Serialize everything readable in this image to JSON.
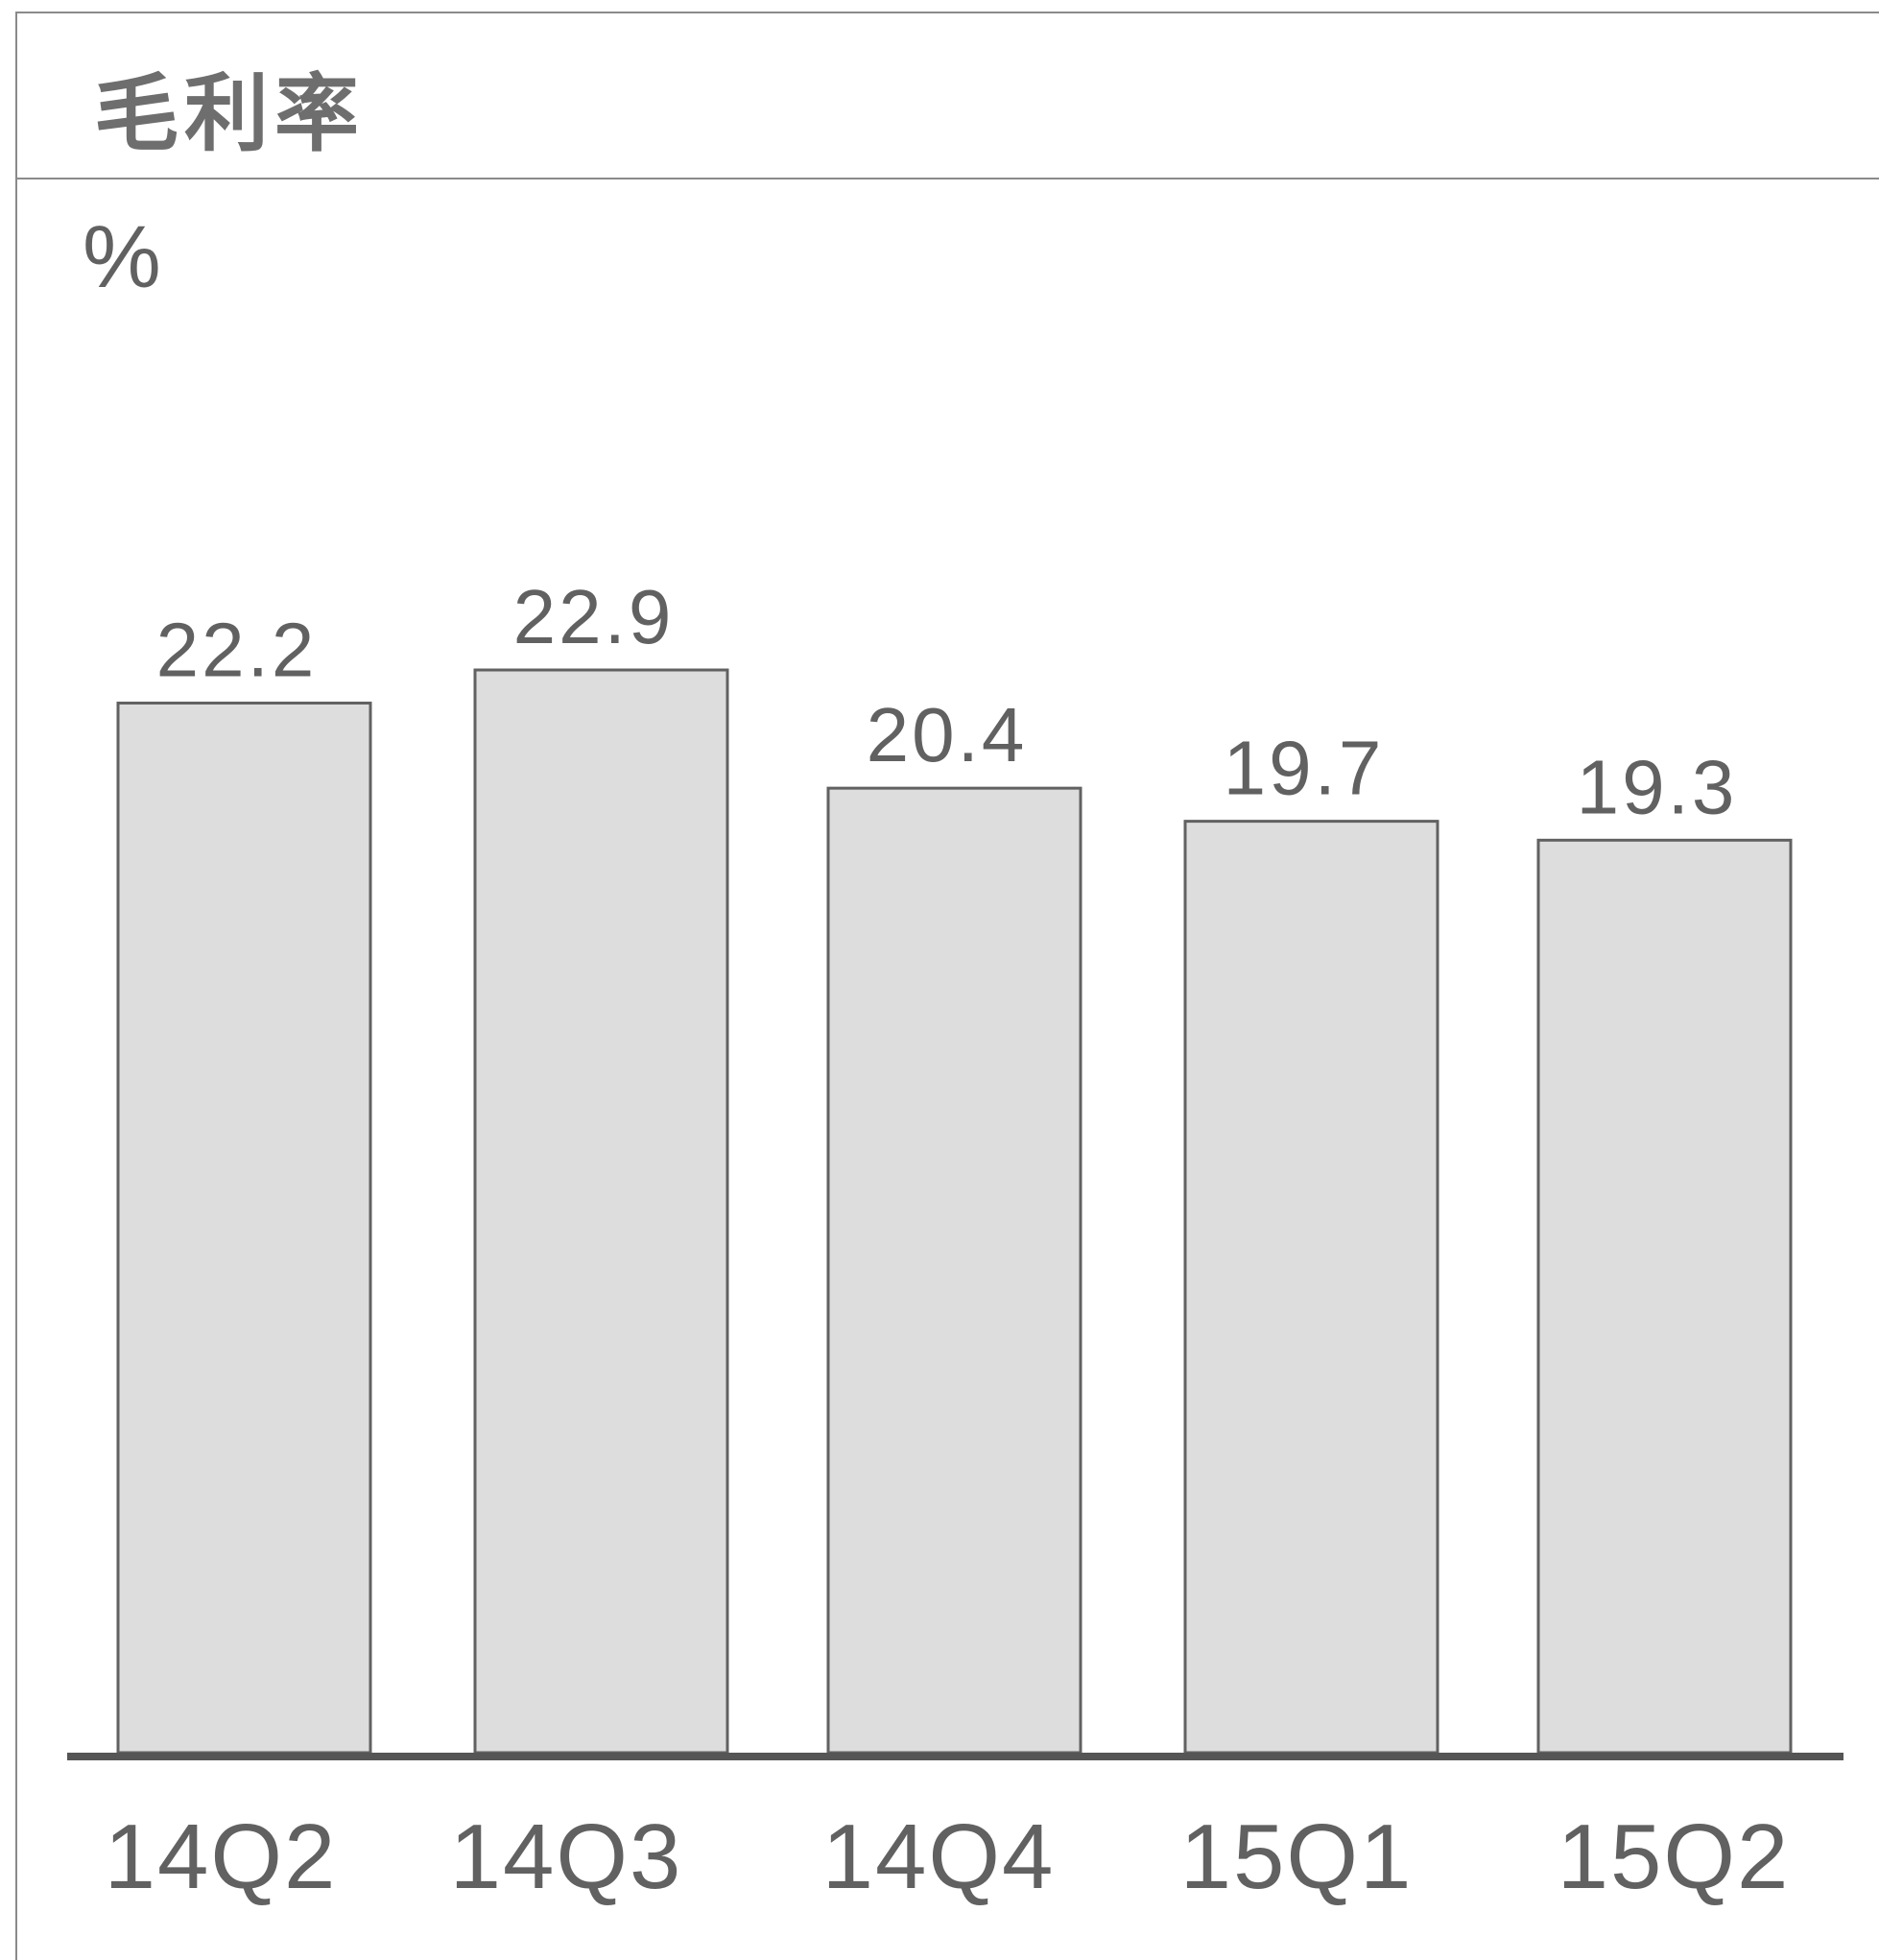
{
  "chart_data": {
    "type": "bar",
    "title": "毛利率",
    "unit": "%",
    "categories": [
      "14Q2",
      "14Q3",
      "14Q4",
      "15Q1",
      "15Q2"
    ],
    "values": [
      22.2,
      22.9,
      20.4,
      19.7,
      19.3
    ],
    "data_labels": [
      "22.2",
      "22.9",
      "20.4",
      "19.7",
      "19.3"
    ],
    "ylim": [
      0,
      22.9
    ],
    "grid": false,
    "legend": "none",
    "colors": {
      "bar_fill": "#dddddd",
      "bar_stroke": "#616161",
      "text": "#616161",
      "axis": "#555555"
    }
  }
}
